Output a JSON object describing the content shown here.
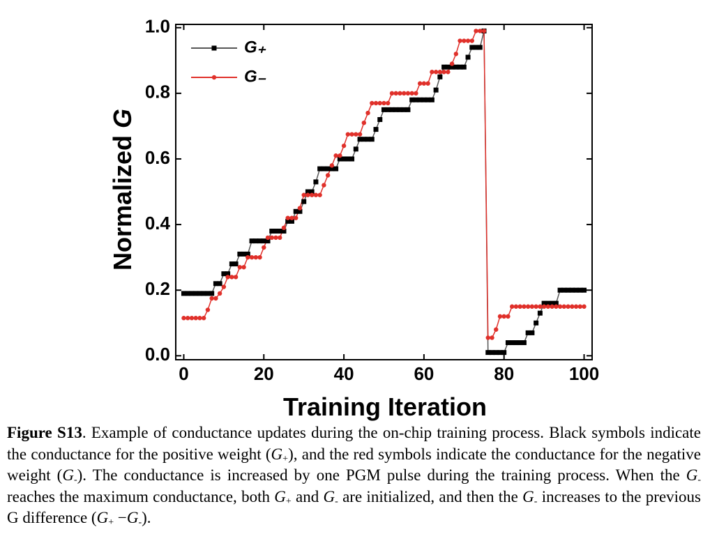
{
  "chart_data": {
    "type": "line",
    "x_label": "Training Iteration",
    "y_label": [
      "Normalized",
      "G"
    ],
    "x": [
      0,
      1,
      2,
      3,
      4,
      5,
      6,
      7,
      8,
      9,
      10,
      11,
      12,
      13,
      14,
      15,
      16,
      17,
      18,
      19,
      20,
      21,
      22,
      23,
      24,
      25,
      26,
      27,
      28,
      29,
      30,
      31,
      32,
      33,
      34,
      35,
      36,
      37,
      38,
      39,
      40,
      41,
      42,
      43,
      44,
      45,
      46,
      47,
      48,
      49,
      50,
      51,
      52,
      53,
      54,
      55,
      56,
      57,
      58,
      59,
      60,
      61,
      62,
      63,
      64,
      65,
      66,
      67,
      68,
      69,
      70,
      71,
      72,
      73,
      74,
      75,
      76,
      77,
      78,
      79,
      80,
      81,
      82,
      83,
      84,
      85,
      86,
      87,
      88,
      89,
      90,
      91,
      92,
      93,
      94,
      95,
      96,
      97,
      98,
      99,
      100
    ],
    "series": [
      {
        "name": "G₊",
        "color": "#000000",
        "marker": "square",
        "values": [
          0.19,
          0.19,
          0.19,
          0.19,
          0.19,
          0.19,
          0.19,
          0.19,
          0.22,
          0.22,
          0.25,
          0.25,
          0.28,
          0.28,
          0.31,
          0.31,
          0.31,
          0.35,
          0.35,
          0.35,
          0.35,
          0.35,
          0.38,
          0.38,
          0.38,
          0.38,
          0.41,
          0.41,
          0.44,
          0.44,
          0.47,
          0.5,
          0.5,
          0.53,
          0.57,
          0.57,
          0.57,
          0.57,
          0.57,
          0.6,
          0.6,
          0.6,
          0.6,
          0.63,
          0.66,
          0.66,
          0.66,
          0.66,
          0.69,
          0.72,
          0.75,
          0.75,
          0.75,
          0.75,
          0.75,
          0.75,
          0.75,
          0.78,
          0.78,
          0.78,
          0.78,
          0.78,
          0.78,
          0.81,
          0.85,
          0.88,
          0.88,
          0.88,
          0.88,
          0.88,
          0.88,
          0.91,
          0.94,
          0.94,
          0.94,
          0.99,
          0.01,
          0.01,
          0.01,
          0.01,
          0.01,
          0.04,
          0.04,
          0.04,
          0.04,
          0.04,
          0.07,
          0.07,
          0.1,
          0.13,
          0.16,
          0.16,
          0.16,
          0.16,
          0.2,
          0.2,
          0.2,
          0.2,
          0.2,
          0.2,
          0.2
        ]
      },
      {
        "name": "G₋",
        "color": "#e0302a",
        "marker": "circle",
        "values": [
          0.115,
          0.115,
          0.115,
          0.115,
          0.115,
          0.115,
          0.14,
          0.175,
          0.175,
          0.19,
          0.21,
          0.24,
          0.24,
          0.24,
          0.27,
          0.27,
          0.3,
          0.3,
          0.3,
          0.3,
          0.33,
          0.36,
          0.36,
          0.36,
          0.36,
          0.39,
          0.42,
          0.42,
          0.42,
          0.45,
          0.49,
          0.49,
          0.49,
          0.49,
          0.49,
          0.52,
          0.55,
          0.58,
          0.61,
          0.61,
          0.64,
          0.675,
          0.675,
          0.675,
          0.675,
          0.71,
          0.74,
          0.77,
          0.77,
          0.77,
          0.77,
          0.77,
          0.8,
          0.8,
          0.8,
          0.8,
          0.8,
          0.8,
          0.8,
          0.83,
          0.83,
          0.83,
          0.865,
          0.865,
          0.865,
          0.865,
          0.865,
          0.89,
          0.92,
          0.96,
          0.96,
          0.96,
          0.96,
          0.99,
          0.99,
          0.99,
          0.055,
          0.055,
          0.08,
          0.12,
          0.12,
          0.12,
          0.15,
          0.15,
          0.15,
          0.15,
          0.15,
          0.15,
          0.15,
          0.15,
          0.15,
          0.15,
          0.15,
          0.15,
          0.15,
          0.15,
          0.15,
          0.15,
          0.15,
          0.15,
          0.15
        ]
      }
    ],
    "xlim": [
      -2,
      102
    ],
    "xticks": [
      0,
      20,
      40,
      60,
      80,
      100
    ],
    "ylim": [
      -0.012,
      1.01
    ],
    "yticks": [
      {
        "value": 0,
        "label": "0.0"
      },
      0.2,
      0.4,
      0.6,
      0.8,
      {
        "value": 1,
        "label": "1.0"
      }
    ],
    "grid": false,
    "legend": "upper left"
  },
  "caption": [
    "Figure S13",
    ". Example of conductance updates during the on-chip training process. Black symbols indicate the conductance for the positive weight (",
    "G",
    "+",
    "), and the red symbols indicate the conductance for the negative weight (",
    "G",
    "-",
    "). The conductance is increased by one PGM pulse during the training process. When the ",
    "G",
    "-",
    " reaches the maximum conductance, both ",
    "G",
    "+",
    " and ",
    "G",
    "-",
    " are initialized, and then the ",
    "G",
    "-",
    " increases to the previous G difference (",
    "G",
    "+",
    " −",
    "G",
    "-",
    ")."
  ]
}
